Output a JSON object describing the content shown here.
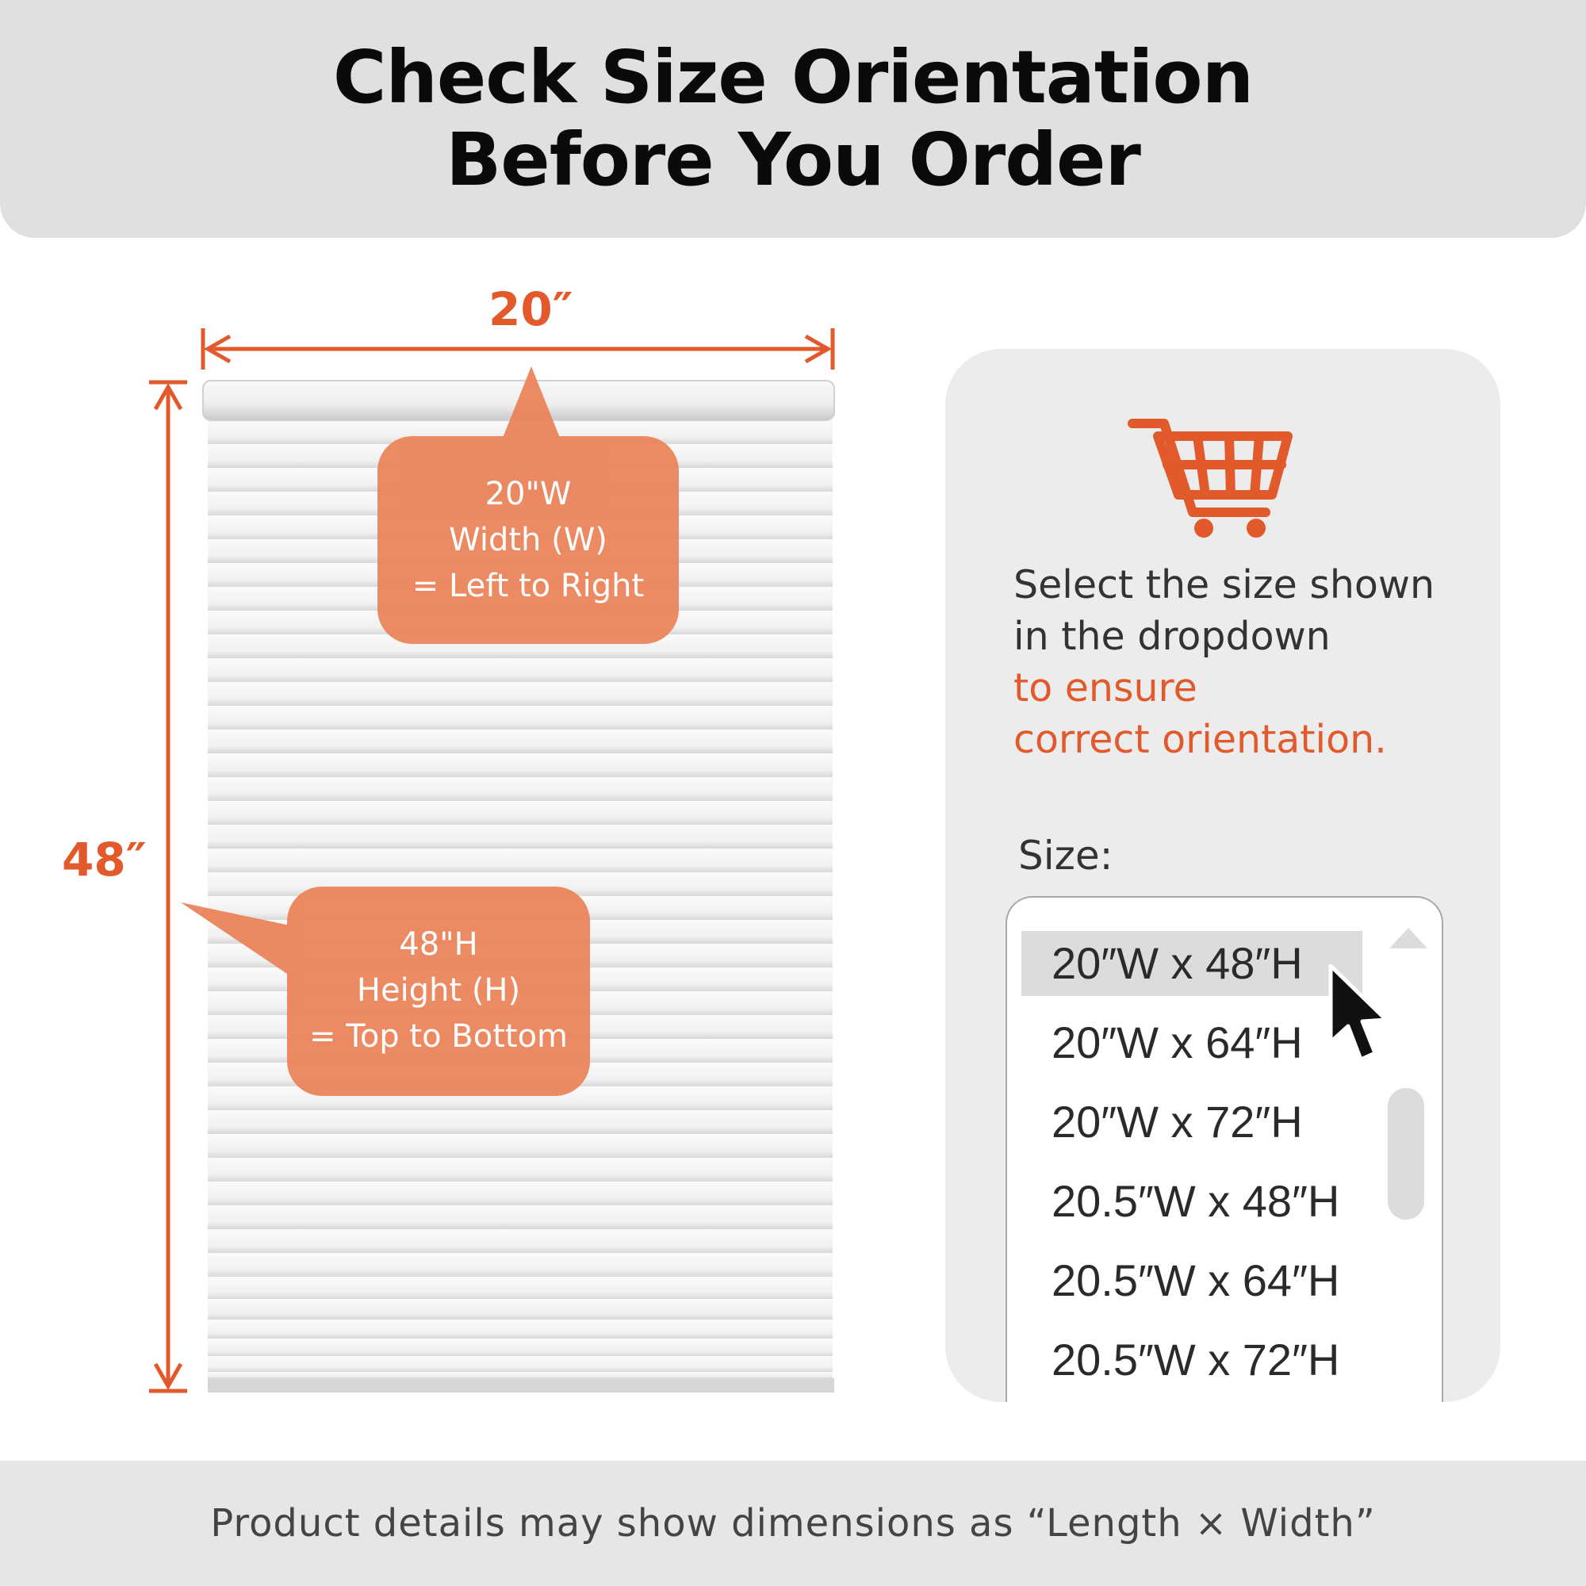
{
  "header": {
    "title_line1": "Check Size Orientation",
    "title_line2": "Before You Order"
  },
  "dimensions": {
    "width_label": "20″",
    "height_label": "48″"
  },
  "callouts": {
    "width": {
      "line1": "20\"W",
      "line2": "Width (W)",
      "line3": "= Left to Right"
    },
    "height": {
      "line1": "48\"H",
      "line2": "Height (H)",
      "line3": "= Top to Bottom"
    }
  },
  "panel": {
    "icon": "shopping-cart-icon",
    "instruction_line1": "Select the size shown",
    "instruction_line2": "in the dropdown",
    "instruction_line3": "to ensure",
    "instruction_line4": "correct orientation.",
    "size_label": "Size:",
    "options": [
      "20″W x 48″H",
      "20″W x 64″H",
      "20″W x 72″H",
      "20.5″W x 48″H",
      "20.5″W x 64″H",
      "20.5″W x 72″H"
    ],
    "selected_option": "20″W x 48″H"
  },
  "footer": {
    "note": "Product details may show dimensions as “Length × Width”"
  },
  "colors": {
    "accent": "#e25a2b",
    "callout": "#eb855d",
    "header_bg": "#e0e0e0",
    "panel_bg": "#ececec"
  }
}
